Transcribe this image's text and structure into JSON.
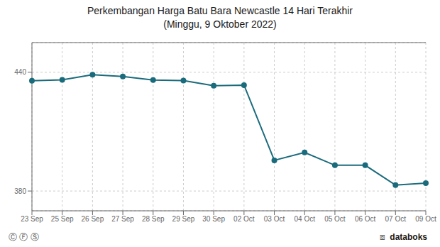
{
  "chart_data": {
    "type": "line",
    "title": "Perkembangan Harga Batu Bara Newcastle 14 Hari Terakhir",
    "subtitle": "(Minggu, 9 Oktober 2022)",
    "categories": [
      "23 Sep",
      "25 Sep",
      "26 Sep",
      "27 Sep",
      "28 Sep",
      "29 Sep",
      "30 Sep",
      "02 Oct",
      "03 Oct",
      "04 Oct",
      "05 Oct",
      "06 Oct",
      "07 Oct",
      "09 Oct"
    ],
    "values": [
      435.7,
      436.2,
      438.8,
      437.9,
      436.1,
      435.8,
      433.2,
      433.5,
      395.5,
      399.5,
      393.0,
      393.0,
      383.0,
      384.0
    ],
    "color": "#1a6b7c",
    "marker": "circle",
    "ylim": [
      370,
      455
    ],
    "yticks": [
      380,
      440
    ],
    "grid": true,
    "annotations": [
      "Ⓒ Ⓕ Ⓢ",
      "⧈",
      "databoks"
    ]
  }
}
